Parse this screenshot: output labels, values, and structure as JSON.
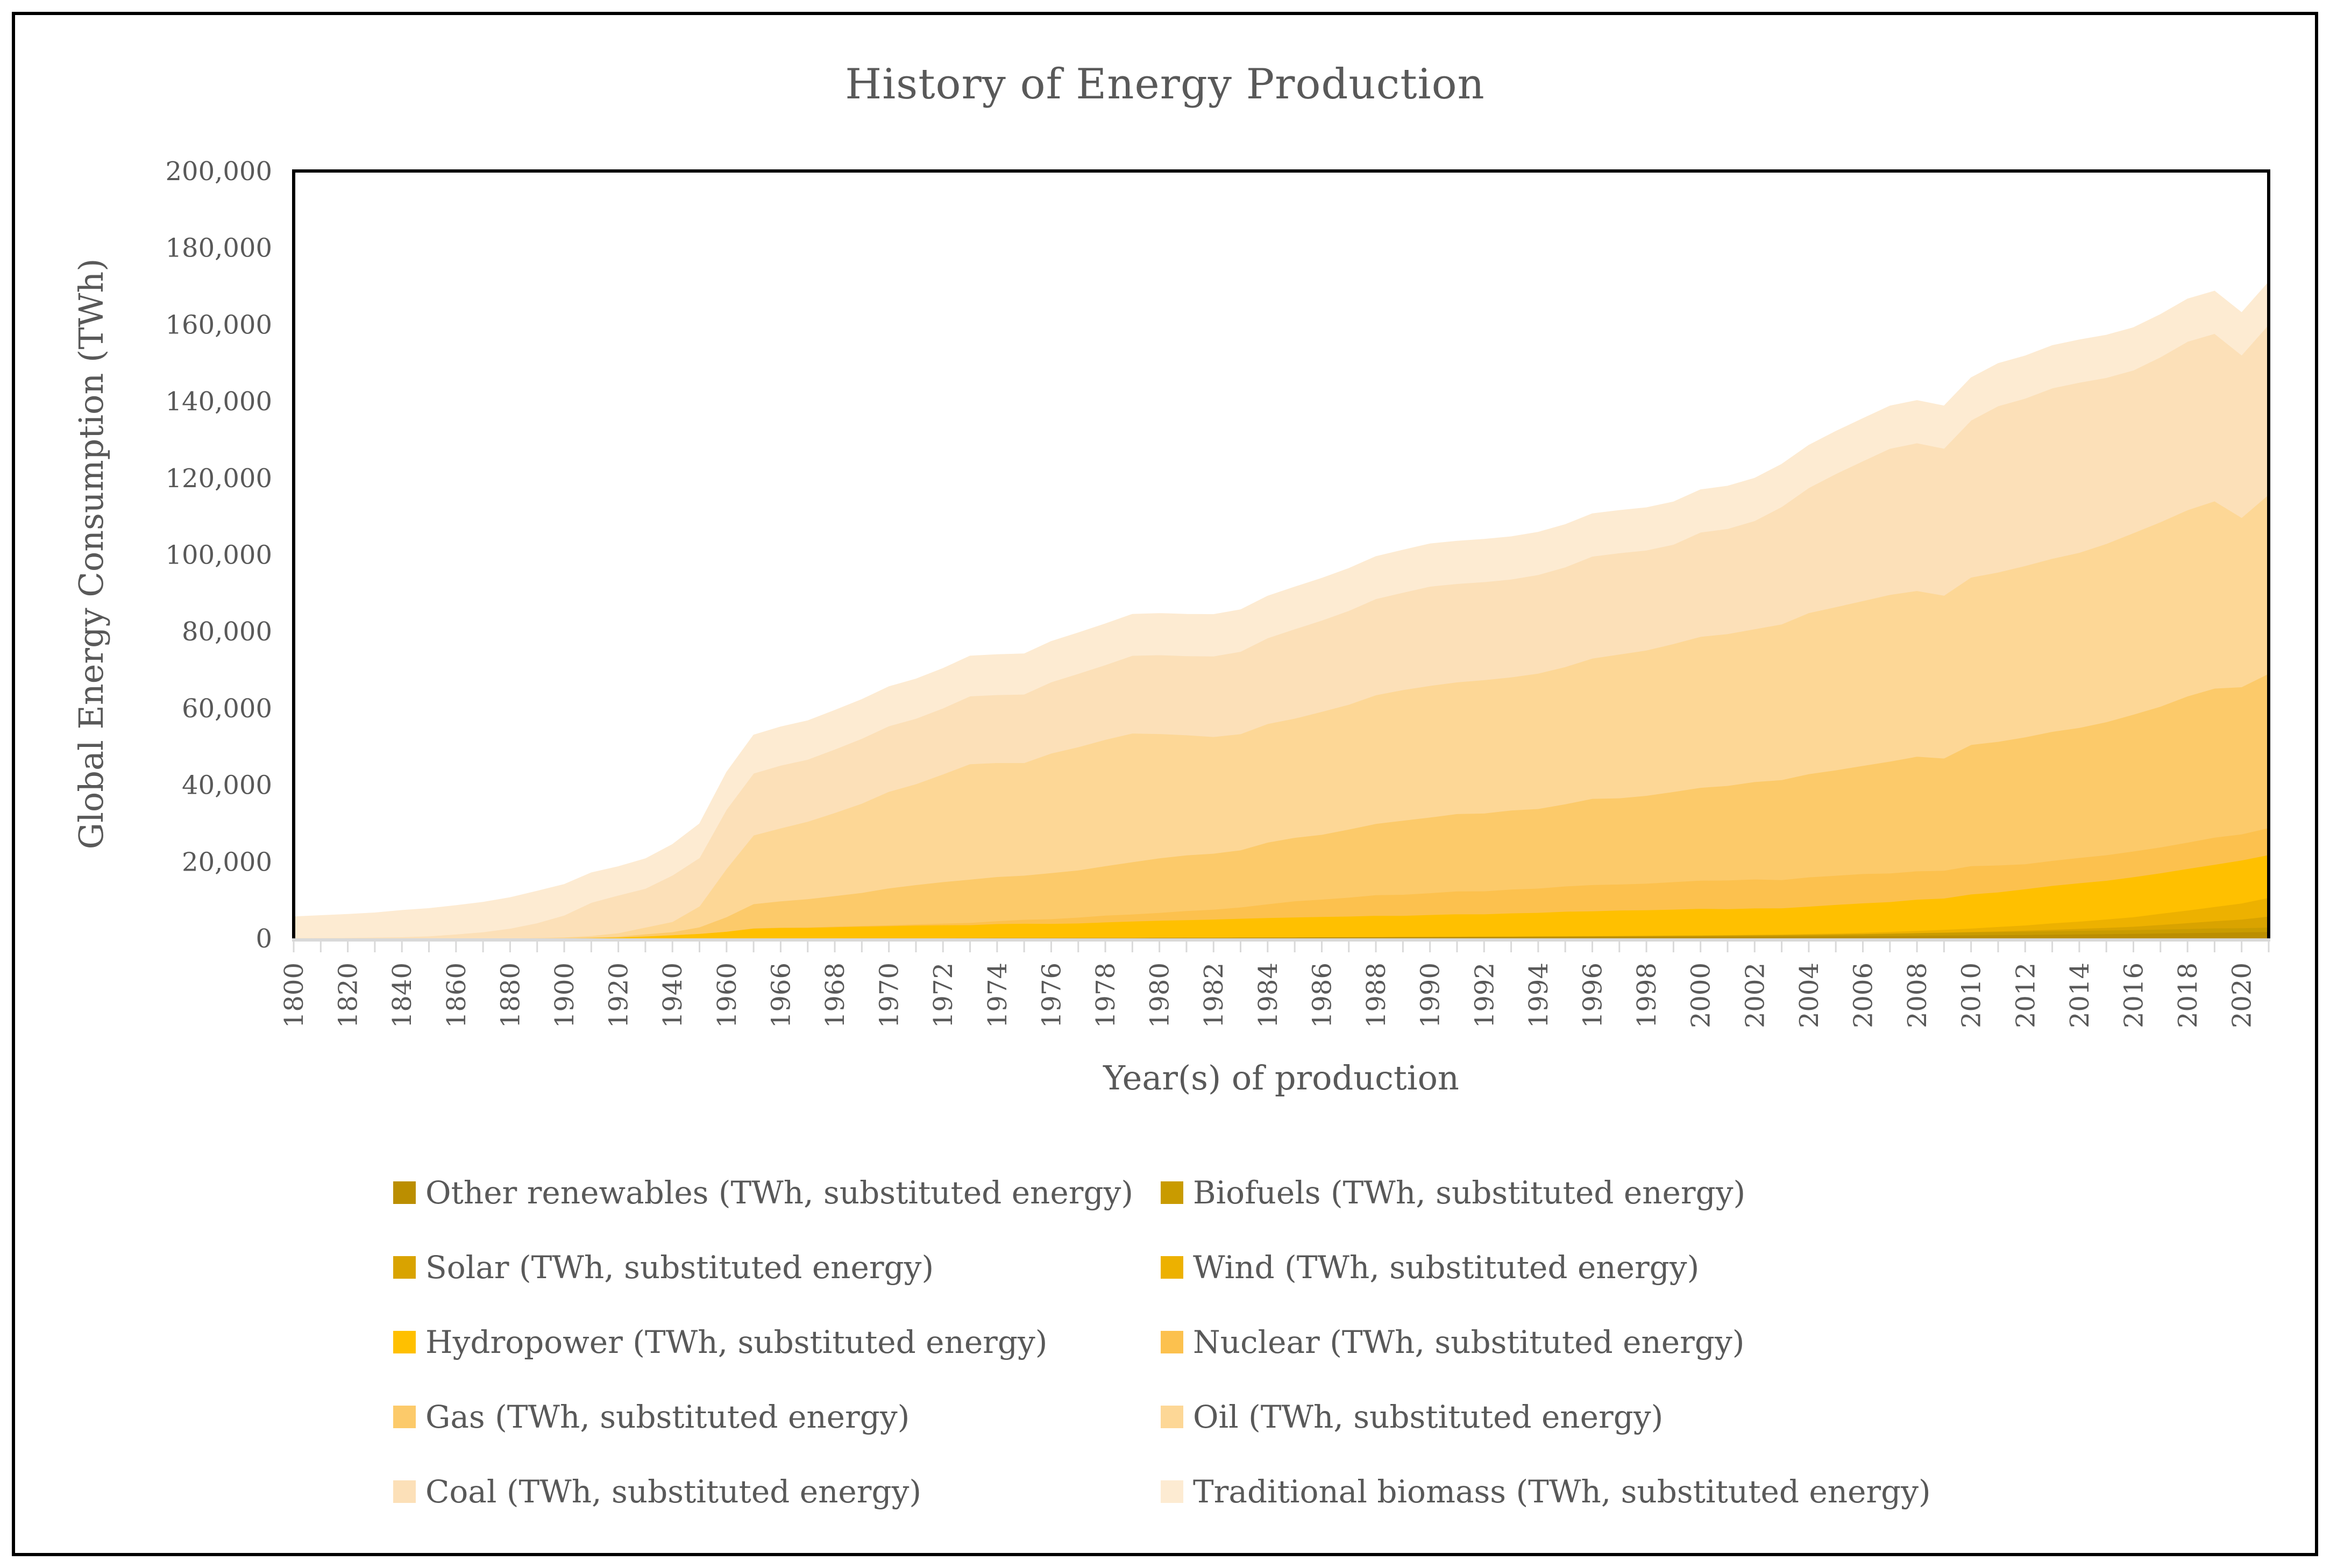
{
  "chart_data": {
    "type": "area",
    "stacked": true,
    "title": "History of Energy Production",
    "xlabel": "Year(s) of production",
    "ylabel": "Global Energy Consumption (TWh)",
    "ylim": [
      0,
      200000
    ],
    "y_tick_step": 20000,
    "y_tick_labels": [
      "0",
      "20,000",
      "40,000",
      "60,000",
      "80,000",
      "100,000",
      "120,000",
      "140,000",
      "160,000",
      "180,000",
      "200,000"
    ],
    "x_tick_labels_shown": [
      "1800",
      "1820",
      "1840",
      "1860",
      "1880",
      "1900",
      "1920",
      "1940",
      "1960",
      "1966",
      "1968",
      "1970",
      "1972",
      "1974",
      "1976",
      "1978",
      "1980",
      "1982",
      "1984",
      "1986",
      "1988",
      "1990",
      "1992",
      "1994",
      "1996",
      "1998",
      "2000",
      "2002",
      "2004",
      "2006",
      "2008",
      "2010",
      "2012",
      "2014",
      "2016",
      "2018",
      "2020"
    ],
    "x_label_interval": 2,
    "grid": false,
    "legend": {
      "position": "bottom",
      "columns": 2
    },
    "categories": [
      "1800",
      "1810",
      "1820",
      "1830",
      "1840",
      "1850",
      "1860",
      "1870",
      "1880",
      "1890",
      "1900",
      "1910",
      "1920",
      "1930",
      "1940",
      "1950",
      "1960",
      "1965",
      "1966",
      "1967",
      "1968",
      "1969",
      "1970",
      "1971",
      "1972",
      "1973",
      "1974",
      "1975",
      "1976",
      "1977",
      "1978",
      "1979",
      "1980",
      "1981",
      "1982",
      "1983",
      "1984",
      "1985",
      "1986",
      "1987",
      "1988",
      "1989",
      "1990",
      "1991",
      "1992",
      "1993",
      "1994",
      "1995",
      "1996",
      "1997",
      "1998",
      "1999",
      "2000",
      "2001",
      "2002",
      "2003",
      "2004",
      "2005",
      "2006",
      "2007",
      "2008",
      "2009",
      "2010",
      "2011",
      "2012",
      "2013",
      "2014",
      "2015",
      "2016",
      "2017",
      "2018",
      "2019",
      "2020",
      "2021"
    ],
    "series": [
      {
        "name": "Other renewables (TWh, substituted energy)",
        "color": "#BB8E00",
        "values": [
          0,
          0,
          0,
          0,
          0,
          0,
          0,
          0,
          0,
          0,
          0,
          0,
          0,
          0,
          0,
          0,
          0,
          58,
          62,
          66,
          70,
          75,
          80,
          86,
          92,
          98,
          104,
          110,
          118,
          126,
          134,
          142,
          152,
          163,
          175,
          188,
          202,
          217,
          233,
          250,
          268,
          288,
          310,
          330,
          350,
          370,
          390,
          410,
          430,
          450,
          470,
          490,
          510,
          530,
          550,
          570,
          600,
          630,
          660,
          700,
          740,
          780,
          830,
          890,
          950,
          1020,
          1090,
          1160,
          1240,
          1330,
          1420,
          1520,
          1620,
          1730
        ]
      },
      {
        "name": "Biofuels (TWh, substituted energy)",
        "color": "#C99B00",
        "values": [
          0,
          0,
          0,
          0,
          0,
          0,
          0,
          0,
          0,
          0,
          0,
          0,
          0,
          0,
          0,
          0,
          0,
          16,
          17,
          18,
          19,
          20,
          22,
          24,
          26,
          28,
          30,
          33,
          36,
          39,
          43,
          47,
          68,
          75,
          82,
          90,
          99,
          109,
          115,
          121,
          127,
          134,
          141,
          148,
          156,
          164,
          172,
          181,
          190,
          200,
          210,
          230,
          250,
          270,
          300,
          330,
          370,
          420,
          490,
          570,
          660,
          720,
          780,
          810,
          840,
          890,
          930,
          950,
          980,
          1020,
          1080,
          1140,
          1070,
          1140
        ]
      },
      {
        "name": "Solar (TWh, substituted energy)",
        "color": "#D9A300",
        "values": [
          0,
          0,
          0,
          0,
          0,
          0,
          0,
          0,
          0,
          0,
          0,
          0,
          0,
          0,
          0,
          0,
          0,
          0,
          0,
          0,
          0,
          0,
          0,
          0,
          0,
          0,
          0,
          0,
          0,
          0,
          0,
          0,
          0,
          0,
          0,
          0,
          0,
          0,
          0,
          0,
          0,
          0,
          1,
          1,
          1,
          1,
          2,
          2,
          2,
          2,
          3,
          3,
          3,
          4,
          5,
          7,
          9,
          12,
          16,
          21,
          34,
          55,
          95,
          170,
          265,
          370,
          510,
          680,
          870,
          1190,
          1520,
          1870,
          2270,
          2850
        ]
      },
      {
        "name": "Wind (TWh, substituted energy)",
        "color": "#EDB100",
        "values": [
          0,
          0,
          0,
          0,
          0,
          0,
          0,
          0,
          0,
          0,
          0,
          0,
          0,
          0,
          0,
          0,
          0,
          0,
          0,
          0,
          0,
          0,
          0,
          0,
          0,
          0,
          0,
          0,
          0,
          0,
          0,
          0,
          0,
          0,
          0,
          0,
          0,
          1,
          2,
          3,
          5,
          7,
          10,
          11,
          13,
          15,
          19,
          21,
          24,
          31,
          42,
          56,
          83,
          101,
          138,
          167,
          223,
          271,
          347,
          447,
          577,
          723,
          904,
          1155,
          1368,
          1707,
          1890,
          2186,
          2474,
          2928,
          3284,
          3700,
          4190,
          4870
        ]
      },
      {
        "name": "Hydropower (TWh, substituted energy)",
        "color": "#FFC000",
        "values": [
          0,
          0,
          0,
          0,
          0,
          0,
          0,
          0,
          0,
          10,
          45,
          121,
          270,
          560,
          880,
          1220,
          1790,
          2522,
          2680,
          2710,
          2870,
          3020,
          3140,
          3280,
          3360,
          3370,
          3650,
          3720,
          3680,
          3770,
          4040,
          4250,
          4450,
          4570,
          4700,
          4900,
          5070,
          5180,
          5290,
          5370,
          5540,
          5480,
          5690,
          5850,
          5800,
          6030,
          6130,
          6390,
          6480,
          6630,
          6680,
          6770,
          6920,
          6770,
          6870,
          6820,
          7130,
          7440,
          7670,
          7780,
          8140,
          8160,
          8900,
          9010,
          9440,
          9750,
          10000,
          10090,
          10430,
          10550,
          10850,
          11000,
          11210,
          11180
        ]
      },
      {
        "name": "Nuclear (TWh, substituted energy)",
        "color": "#FCC14E",
        "values": [
          0,
          0,
          0,
          0,
          0,
          0,
          0,
          0,
          0,
          0,
          0,
          0,
          0,
          0,
          0,
          0,
          0,
          72,
          96,
          116,
          148,
          175,
          224,
          311,
          432,
          579,
          756,
          1049,
          1228,
          1528,
          1776,
          1847,
          2020,
          2386,
          2588,
          2933,
          3560,
          4225,
          4525,
          4922,
          5366,
          5519,
          5676,
          5948,
          5993,
          6199,
          6316,
          6590,
          6829,
          6782,
          6899,
          7162,
          7323,
          7481,
          7552,
          7351,
          7636,
          7608,
          7654,
          7452,
          7382,
          7233,
          7374,
          7022,
          6501,
          6513,
          6607,
          6656,
          6715,
          6735,
          6856,
          7073,
          6789,
          7031
        ]
      },
      {
        "name": "Gas (TWh, substituted energy)",
        "color": "#FCCA6A",
        "values": [
          0,
          0,
          0,
          0,
          0,
          0,
          0,
          0,
          7,
          36,
          64,
          140,
          222,
          542,
          792,
          1708,
          3778,
          6304,
          6850,
          7350,
          7960,
          8610,
          9610,
          10240,
          10800,
          11290,
          11510,
          11480,
          12000,
          12300,
          12870,
          13620,
          14240,
          14500,
          14580,
          14890,
          16090,
          16530,
          16880,
          17750,
          18570,
          19300,
          19720,
          20170,
          20280,
          20620,
          20750,
          21400,
          22470,
          22470,
          22900,
          23490,
          24210,
          24640,
          25380,
          26060,
          26880,
          27480,
          28160,
          29150,
          29870,
          29270,
          31580,
          32220,
          33080,
          33640,
          33880,
          34660,
          35640,
          36680,
          38100,
          38860,
          38380,
          40190
        ]
      },
      {
        "name": "Oil (TWh, substituted energy)",
        "color": "#FDD796",
        "values": [
          0,
          0,
          0,
          0,
          0,
          0,
          2,
          9,
          33,
          89,
          181,
          397,
          889,
          1758,
          2653,
          5444,
          12569,
          17890,
          19000,
          20180,
          21660,
          23250,
          25170,
          26290,
          28060,
          30080,
          29710,
          29360,
          31170,
          32110,
          32940,
          33550,
          32390,
          31300,
          30420,
          30270,
          30900,
          31060,
          32040,
          32540,
          33540,
          34040,
          34310,
          34330,
          34770,
          34690,
          35280,
          35770,
          36560,
          37480,
          37870,
          38560,
          39340,
          39570,
          39830,
          40580,
          41980,
          42510,
          42970,
          43450,
          43190,
          42430,
          43640,
          44120,
          44650,
          45100,
          45640,
          46470,
          47320,
          48070,
          48540,
          48790,
          44130,
          46680
        ]
      },
      {
        "name": "Coal (TWh, substituted energy)",
        "color": "#FCE0B8",
        "values": [
          97,
          128,
          153,
          264,
          356,
          569,
          1061,
          1642,
          2542,
          3856,
          5728,
          8656,
          9833,
          10125,
          12097,
          12603,
          15442,
          16140,
          16370,
          16180,
          16540,
          16900,
          17080,
          17050,
          17200,
          17700,
          17710,
          17860,
          18560,
          19110,
          19460,
          20250,
          20540,
          20610,
          21000,
          21480,
          22350,
          23300,
          23790,
          24440,
          25060,
          25370,
          25870,
          25640,
          25550,
          25490,
          25700,
          26000,
          26580,
          26390,
          26080,
          25900,
          27190,
          27400,
          28210,
          30590,
          32600,
          34690,
          36430,
          38090,
          38510,
          38310,
          40920,
          43350,
          43630,
          44420,
          44350,
          43270,
          42410,
          43000,
          43900,
          43660,
          42340,
          44300
        ]
      },
      {
        "name": "Traditional biomass (TWh, substituted energy)",
        "color": "#FDEBD2",
        "values": [
          5556,
          5833,
          6111,
          6389,
          6944,
          7222,
          7500,
          7778,
          8056,
          8333,
          8056,
          7778,
          7500,
          7778,
          8056,
          8889,
          9722,
          10000,
          10056,
          10111,
          10167,
          10222,
          10278,
          10333,
          10389,
          10444,
          10500,
          10556,
          10611,
          10667,
          10722,
          10778,
          10833,
          10861,
          10889,
          10917,
          10944,
          10972,
          11000,
          11028,
          11056,
          11083,
          11111,
          11111,
          11111,
          11111,
          11111,
          11111,
          11111,
          11111,
          11111,
          11111,
          11111,
          11111,
          11111,
          11111,
          11111,
          11111,
          11111,
          11111,
          11111,
          11111,
          11111,
          11111,
          11111,
          11111,
          11111,
          11111,
          11111,
          11111,
          11111,
          11111,
          11111,
          11111
        ]
      }
    ],
    "style": {
      "text_color": "#595959",
      "plot_border_color": "#000000",
      "axis_line_color": "#D9D9D9",
      "background": "#FFFFFF"
    }
  }
}
